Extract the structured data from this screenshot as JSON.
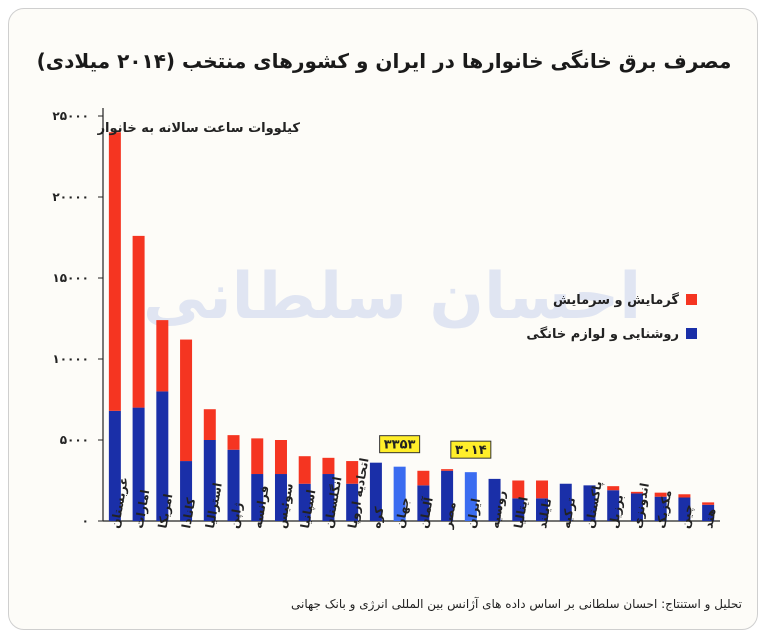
{
  "chart_data": {
    "type": "bar",
    "stacked": true,
    "title": "مصرف برق خانگی خانوارها در ایران و کشورهای منتخب (۲۰۱۴ میلادی)",
    "ylabel": "کیلووات ساعت سالانه به خانوار",
    "ylim": [
      0,
      25000
    ],
    "yticks": [
      0,
      5000,
      10000,
      15000,
      20000,
      25000
    ],
    "ytick_labels": [
      "۰",
      "۵۰۰۰",
      "۱۰۰۰۰",
      "۱۵۰۰۰",
      "۲۰۰۰۰",
      "۲۵۰۰۰"
    ],
    "legend_position": "right",
    "grid": false,
    "categories": [
      "عربستان",
      "امارات",
      "امریکا",
      "کانادا",
      "استرالیا",
      "ژاپن",
      "فرانسه",
      "سوئیس",
      "اسپانیا",
      "انگلستان",
      "اتحادیه اروپا",
      "کره",
      "جهان",
      "آلمان",
      "مصر",
      "ایران",
      "روسیه",
      "ایتالیا",
      "تایلند",
      "ترکیه",
      "پاکستان",
      "برزیل",
      "اندونزی",
      "مکزیک",
      "چین",
      "هند"
    ],
    "series": [
      {
        "name": "روشنایی و لوازم خانگی",
        "color": "#1a2fa8",
        "values": [
          6800,
          7000,
          8000,
          3700,
          5000,
          4400,
          2900,
          2900,
          2300,
          2900,
          2300,
          3600,
          3353,
          2200,
          3100,
          3014,
          2600,
          1400,
          1400,
          2300,
          2200,
          1900,
          1700,
          1500,
          1450,
          1000
        ]
      },
      {
        "name": "گرمایش و سرمایش",
        "color": "#f53521",
        "values": [
          17200,
          10600,
          4400,
          7500,
          1900,
          900,
          2200,
          2100,
          1700,
          1000,
          1400,
          0,
          0,
          900,
          100,
          0,
          0,
          1100,
          1100,
          0,
          0,
          250,
          100,
          250,
          200,
          150
        ]
      }
    ],
    "highlight_color": "#3a6cf0",
    "annotations": [
      {
        "category": "جهان",
        "text": "۳۳۵۳",
        "value": 3353
      },
      {
        "category": "ایران",
        "text": "۳۰۱۴",
        "value": 3014
      }
    ],
    "annotation_bg": "#ffee2a",
    "watermark": "احسان سلطانی",
    "source": "تحلیل و استنتاج: احسان سلطانی بر اساس داده های آژانس بین المللی انرژی و بانک جهانی"
  }
}
